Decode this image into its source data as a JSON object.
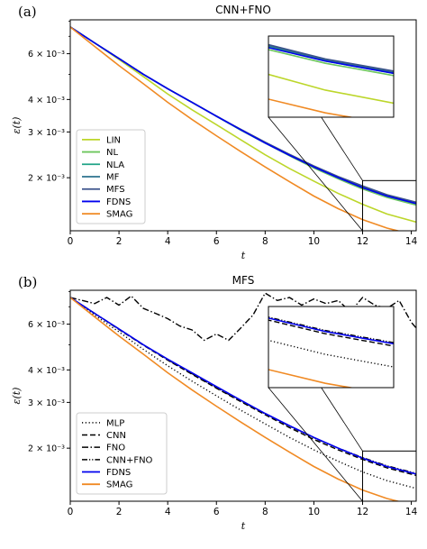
{
  "chart_data": [
    {
      "panel_label": "(a)",
      "type": "line",
      "title": "CNN+FNO",
      "xlabel": "t",
      "ylabel": "ε(t)",
      "xlim": [
        0,
        14.2
      ],
      "ylim": [
        0.00125,
        0.0081
      ],
      "yscale": "log",
      "xticks": [
        "0",
        "2",
        "4",
        "6",
        "8",
        "10",
        "12",
        "14"
      ],
      "yticks": [
        {
          "value": 0.006,
          "label": "6 × 10⁻³"
        },
        {
          "value": 0.004,
          "label": "4 × 10⁻³"
        },
        {
          "value": 0.003,
          "label": "3 × 10⁻³"
        },
        {
          "value": 0.002,
          "label": "2 × 10⁻³"
        }
      ],
      "legend_position": "lower-left",
      "inset": {
        "xlim": [
          12,
          14.2
        ],
        "ylim": [
          0.00125,
          0.00195
        ]
      },
      "x": [
        0,
        1,
        2,
        3,
        4,
        5,
        6,
        7,
        8,
        9,
        10,
        11,
        12,
        13,
        14.2
      ],
      "series": [
        {
          "name": "LIN",
          "color": "#bcd62a",
          "style": "solid",
          "values": [
            0.0076,
            0.0066,
            0.0057,
            0.0049,
            0.0042,
            0.00365,
            0.0032,
            0.0028,
            0.00245,
            0.00217,
            0.00194,
            0.00174,
            0.00158,
            0.00145,
            0.00135
          ]
        },
        {
          "name": "NL",
          "color": "#6cc65d",
          "style": "solid",
          "values": [
            0.0076,
            0.0066,
            0.00575,
            0.005,
            0.0044,
            0.0039,
            0.00345,
            0.00305,
            0.00272,
            0.00243,
            0.00218,
            0.00198,
            0.00181,
            0.00168,
            0.00157
          ]
        },
        {
          "name": "NLA",
          "color": "#20a387",
          "style": "solid",
          "values": [
            0.0076,
            0.0066,
            0.00575,
            0.005,
            0.0044,
            0.0039,
            0.00345,
            0.00305,
            0.00272,
            0.00244,
            0.0022,
            0.002,
            0.00184,
            0.0017,
            0.00159
          ]
        },
        {
          "name": "MF",
          "color": "#2c728e",
          "style": "solid",
          "values": [
            0.0076,
            0.0066,
            0.00575,
            0.005,
            0.0044,
            0.0039,
            0.00345,
            0.00306,
            0.00273,
            0.00245,
            0.00221,
            0.00201,
            0.00185,
            0.00171,
            0.0016
          ]
        },
        {
          "name": "MFS",
          "color": "#3b528b",
          "style": "solid",
          "values": [
            0.0076,
            0.0066,
            0.00575,
            0.005,
            0.0044,
            0.0039,
            0.00345,
            0.00307,
            0.00274,
            0.00246,
            0.00222,
            0.00202,
            0.00186,
            0.00172,
            0.00161
          ]
        },
        {
          "name": "FDNS",
          "color": "#0000ee",
          "style": "solid",
          "values": [
            0.0076,
            0.0066,
            0.00575,
            0.005,
            0.0044,
            0.0039,
            0.00345,
            0.00306,
            0.00272,
            0.00244,
            0.0022,
            0.002,
            0.00183,
            0.0017,
            0.00159
          ]
        },
        {
          "name": "SMAG",
          "color": "#f08a24",
          "style": "solid",
          "values": [
            0.0076,
            0.0064,
            0.0054,
            0.0046,
            0.0039,
            0.00335,
            0.0029,
            0.00252,
            0.0022,
            0.00193,
            0.0017,
            0.00152,
            0.00138,
            0.00128,
            0.0012
          ]
        }
      ]
    },
    {
      "panel_label": "(b)",
      "type": "line",
      "title": "MFS",
      "xlabel": "t",
      "ylabel": "ε(t)",
      "xlim": [
        0,
        14.2
      ],
      "ylim": [
        0.00125,
        0.0081
      ],
      "yscale": "log",
      "xticks": [
        "0",
        "2",
        "4",
        "6",
        "8",
        "10",
        "12",
        "14"
      ],
      "yticks": [
        {
          "value": 0.006,
          "label": "6 × 10⁻³"
        },
        {
          "value": 0.004,
          "label": "4 × 10⁻³"
        },
        {
          "value": 0.003,
          "label": "3 × 10⁻³"
        },
        {
          "value": 0.002,
          "label": "2 × 10⁻³"
        }
      ],
      "legend_position": "lower-left",
      "inset": {
        "xlim": [
          12,
          14.2
        ],
        "ylim": [
          0.00125,
          0.00195
        ]
      },
      "x": [
        0,
        1,
        2,
        3,
        4,
        5,
        6,
        7,
        8,
        9,
        10,
        11,
        12,
        13,
        14.2
      ],
      "series": [
        {
          "name": "MLP",
          "color": "#000000",
          "style": "dotted",
          "values": [
            0.0076,
            0.0065,
            0.0056,
            0.0048,
            0.00415,
            0.00362,
            0.00318,
            0.0028,
            0.00248,
            0.0022,
            0.00197,
            0.00178,
            0.00162,
            0.0015,
            0.0014
          ]
        },
        {
          "name": "CNN",
          "color": "#000000",
          "style": "dashed",
          "values": [
            0.0076,
            0.0066,
            0.00572,
            0.00498,
            0.00436,
            0.00385,
            0.0034,
            0.00302,
            0.00269,
            0.0024,
            0.00216,
            0.00197,
            0.00181,
            0.00168,
            0.00157
          ]
        },
        {
          "name": "FNO",
          "color": "#000000",
          "style": "dashdot",
          "x": [
            0,
            0.5,
            1,
            1.5,
            2,
            2.5,
            3,
            3.5,
            4,
            4.5,
            5,
            5.5,
            6,
            6.5,
            7,
            7.5,
            8,
            8.5,
            9,
            9.5,
            10,
            10.5,
            11,
            11.5,
            12,
            12.5,
            13,
            13.5,
            14,
            14.2
          ],
          "values": [
            0.0076,
            0.0074,
            0.0072,
            0.0076,
            0.0071,
            0.0077,
            0.0069,
            0.0066,
            0.0063,
            0.0059,
            0.0057,
            0.0052,
            0.0055,
            0.0052,
            0.0058,
            0.0065,
            0.0079,
            0.0074,
            0.0076,
            0.0071,
            0.0075,
            0.0072,
            0.0074,
            0.0067,
            0.0076,
            0.0071,
            0.0069,
            0.0074,
            0.0061,
            0.0058
          ]
        },
        {
          "name": "CNN+FNO",
          "color": "#000000",
          "style": "dashdotdot",
          "values": [
            0.0076,
            0.0066,
            0.00575,
            0.005,
            0.00438,
            0.00387,
            0.00342,
            0.00304,
            0.00271,
            0.00243,
            0.00219,
            0.002,
            0.00184,
            0.00171,
            0.0016
          ]
        },
        {
          "name": "FDNS",
          "color": "#0000ee",
          "style": "solid",
          "values": [
            0.0076,
            0.0066,
            0.00575,
            0.005,
            0.0044,
            0.0039,
            0.00345,
            0.00306,
            0.00272,
            0.00244,
            0.0022,
            0.002,
            0.00183,
            0.0017,
            0.00159
          ]
        },
        {
          "name": "SMAG",
          "color": "#f08a24",
          "style": "solid",
          "values": [
            0.0076,
            0.0064,
            0.0054,
            0.0046,
            0.0039,
            0.00335,
            0.0029,
            0.00252,
            0.0022,
            0.00193,
            0.0017,
            0.00152,
            0.00138,
            0.00128,
            0.0012
          ]
        }
      ]
    }
  ]
}
